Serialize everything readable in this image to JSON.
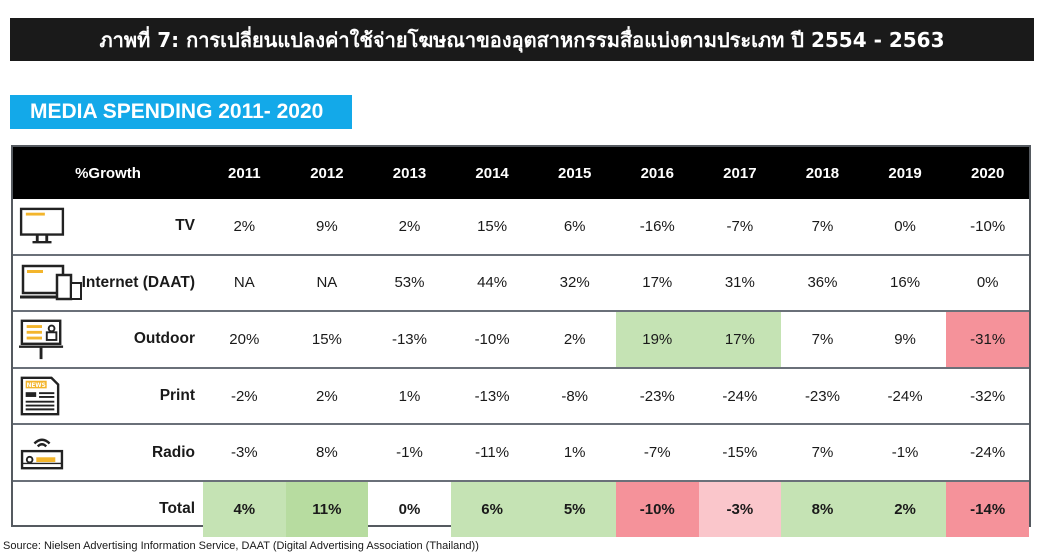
{
  "title": "ภาพที่ 7: การเปลี่ยนแปลงค่าใช้จ่ายโฆษณาของอุตสาหกรรมสื่อแบ่งตามประเภท ปี 2554 - 2563",
  "subtitle": "MEDIA SPENDING 2011- 2020",
  "table": {
    "corner_label": "%Growth",
    "years": [
      "2011",
      "2012",
      "2013",
      "2014",
      "2015",
      "2016",
      "2017",
      "2018",
      "2019",
      "2020"
    ],
    "rows": [
      {
        "label": "TV",
        "icon": "tv-icon",
        "values": [
          "2%",
          "9%",
          "2%",
          "15%",
          "6%",
          "-16%",
          "-7%",
          "7%",
          "0%",
          "-10%"
        ],
        "highlights": [
          "",
          "",
          "",
          "",
          "",
          "",
          "",
          "",
          "",
          ""
        ]
      },
      {
        "label": "Internet (DAAT)",
        "icon": "devices-icon",
        "values": [
          "NA",
          "NA",
          "53%",
          "44%",
          "32%",
          "17%",
          "31%",
          "36%",
          "16%",
          "0%"
        ],
        "highlights": [
          "",
          "",
          "",
          "",
          "",
          "",
          "",
          "",
          "",
          ""
        ]
      },
      {
        "label": "Outdoor",
        "icon": "billboard-icon",
        "values": [
          "20%",
          "15%",
          "-13%",
          "-10%",
          "2%",
          "19%",
          "17%",
          "7%",
          "9%",
          "-31%"
        ],
        "highlights": [
          "",
          "",
          "",
          "",
          "",
          "g-mid",
          "g-mid",
          "",
          "",
          "r-strong"
        ]
      },
      {
        "label": "Print",
        "icon": "newspaper-icon",
        "values": [
          "-2%",
          "2%",
          "1%",
          "-13%",
          "-8%",
          "-23%",
          "-24%",
          "-23%",
          "-24%",
          "-32%"
        ],
        "highlights": [
          "",
          "",
          "",
          "",
          "",
          "",
          "",
          "",
          "",
          ""
        ]
      },
      {
        "label": "Radio",
        "icon": "radio-icon",
        "values": [
          "-3%",
          "8%",
          "-1%",
          "-11%",
          "1%",
          "-7%",
          "-15%",
          "7%",
          "-1%",
          "-24%"
        ],
        "highlights": [
          "",
          "",
          "",
          "",
          "",
          "",
          "",
          "",
          "",
          ""
        ]
      }
    ],
    "total": {
      "label": "Total",
      "values": [
        "4%",
        "11%",
        "0%",
        "6%",
        "5%",
        "-10%",
        "-3%",
        "8%",
        "2%",
        "-14%"
      ],
      "highlights": [
        "g-mid",
        "g-strong",
        "",
        "g-mid",
        "g-mid",
        "r-strong",
        "r-light",
        "g-mid",
        "g-mid",
        "r-strong"
      ]
    }
  },
  "colors": {
    "title_bg": "#1a1a1a",
    "subtitle_bg": "#13a9e9",
    "header_bg": "#000000",
    "positive_highlight": "#c5e3b4",
    "strong_positive_highlight": "#b7dca0",
    "negative_highlight": "#f5929a",
    "light_negative_highlight": "#fac6cb"
  },
  "source": "Source: Nielsen Advertising Information Service, DAAT (Digital Advertising Association (Thailand))"
}
